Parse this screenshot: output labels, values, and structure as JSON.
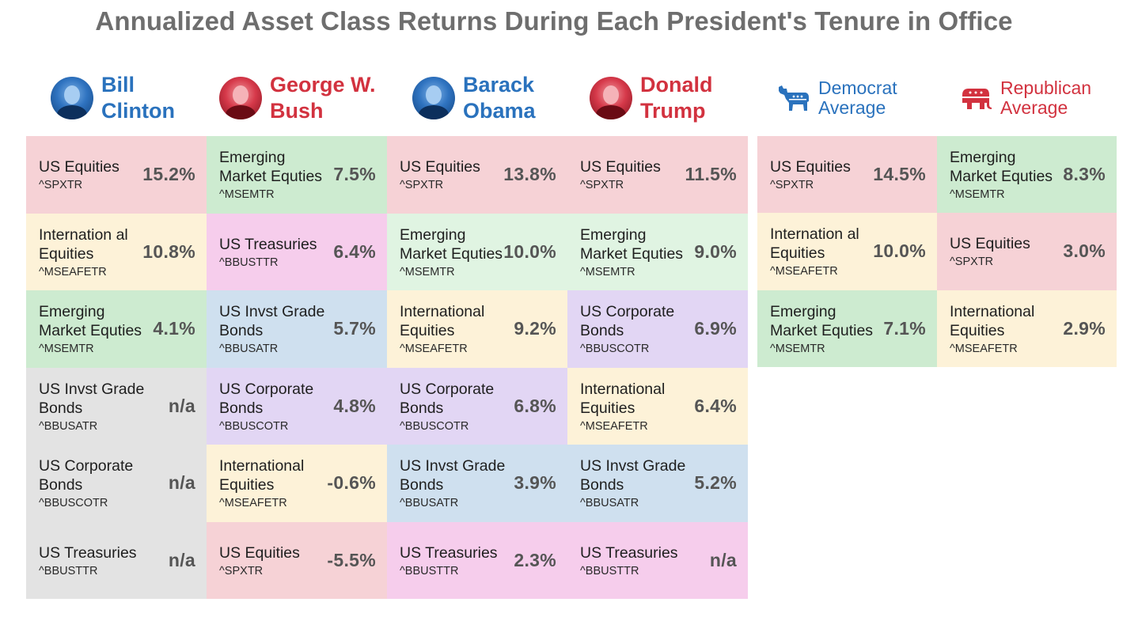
{
  "title": "Annualized Asset Class Returns During Each President's Tenure in Office",
  "colors": {
    "democrat": "#2a72bd",
    "republican": "#d2323f",
    "title": "#6e6e6e",
    "us_equities": "#f6d2d6",
    "emerging_market": "#cdebd0",
    "emerging_market_light": "#e0f4e2",
    "international": "#fdf2d8",
    "us_treasuries": "#f6cdec",
    "us_invst_grade": "#cfe0ef",
    "us_corporate": "#e2d6f4",
    "na": "#e3e3e3"
  },
  "headers": {
    "presidents": [
      {
        "first": "Bill",
        "last": "Clinton",
        "party": "dem",
        "icon": "clinton-portrait-icon"
      },
      {
        "first": "George W.",
        "last": "Bush",
        "party": "rep",
        "icon": "bush-portrait-icon"
      },
      {
        "first": "Barack",
        "last": "Obama",
        "party": "dem",
        "icon": "obama-portrait-icon"
      },
      {
        "first": "Donald",
        "last": "Trump",
        "party": "rep",
        "icon": "trump-portrait-icon"
      }
    ],
    "averages": [
      {
        "line1": "Democrat",
        "line2": "Average",
        "party": "dem",
        "icon": "donkey-icon"
      },
      {
        "line1": "Republican",
        "line2": "Average",
        "party": "rep",
        "icon": "elephant-icon"
      }
    ]
  },
  "chart_data": {
    "type": "table",
    "title": "Annualized Asset Class Returns During Each President's Tenure in Office",
    "unit": "% annualized return",
    "columns": [
      "Bill Clinton",
      "George W. Bush",
      "Barack Obama",
      "Donald Trump",
      "Democrat Average",
      "Republican Average"
    ],
    "presidents": [
      {
        "name": "Bill Clinton",
        "party": "Democrat",
        "rows": [
          {
            "asset": "US Equities",
            "ticker": "^SPXTR",
            "value": "15.2%",
            "color": "us_equities"
          },
          {
            "asset": "International Equities",
            "asset_display": "Internation al Equities",
            "ticker": "^MSEAFETR",
            "value": "10.8%",
            "color": "international"
          },
          {
            "asset": "Emerging Market Equties",
            "ticker": "^MSEMTR",
            "value": "4.1%",
            "color": "emerging_market"
          },
          {
            "asset": "US Invst Grade Bonds",
            "ticker": "^BBUSATR",
            "value": "n/a",
            "color": "na"
          },
          {
            "asset": "US Corporate Bonds",
            "ticker": "^BBUSCOTR",
            "value": "n/a",
            "color": "na"
          },
          {
            "asset": "US Treasuries",
            "ticker": "^BBUSTTR",
            "value": "n/a",
            "color": "na"
          }
        ]
      },
      {
        "name": "George W. Bush",
        "party": "Republican",
        "rows": [
          {
            "asset": "Emerging Market Equties",
            "ticker": "^MSEMTR",
            "value": "7.5%",
            "color": "emerging_market"
          },
          {
            "asset": "US Treasuries",
            "ticker": "^BBUSTTR",
            "value": "6.4%",
            "color": "us_treasuries"
          },
          {
            "asset": "US Invst Grade Bonds",
            "ticker": "^BBUSATR",
            "value": "5.7%",
            "color": "us_invst_grade"
          },
          {
            "asset": "US Corporate Bonds",
            "ticker": "^BBUSCOTR",
            "value": "4.8%",
            "color": "us_corporate"
          },
          {
            "asset": "International Equities",
            "ticker": "^MSEAFETR",
            "value": "-0.6%",
            "color": "international"
          },
          {
            "asset": "US Equities",
            "ticker": "^SPXTR",
            "value": "-5.5%",
            "color": "us_equities"
          }
        ]
      },
      {
        "name": "Barack Obama",
        "party": "Democrat",
        "rows": [
          {
            "asset": "US Equities",
            "ticker": "^SPXTR",
            "value": "13.8%",
            "color": "us_equities"
          },
          {
            "asset": "Emerging Market Equties",
            "ticker": "^MSEMTR",
            "value": "10.0%",
            "color": "emerging_market_light"
          },
          {
            "asset": "International Equities",
            "ticker": "^MSEAFETR",
            "value": "9.2%",
            "color": "international"
          },
          {
            "asset": "US Corporate Bonds",
            "ticker": "^BBUSCOTR",
            "value": "6.8%",
            "color": "us_corporate"
          },
          {
            "asset": "US Invst Grade Bonds",
            "ticker": "^BBUSATR",
            "value": "3.9%",
            "color": "us_invst_grade"
          },
          {
            "asset": "US Treasuries",
            "ticker": "^BBUSTTR",
            "value": "2.3%",
            "color": "us_treasuries"
          }
        ]
      },
      {
        "name": "Donald Trump",
        "party": "Republican",
        "rows": [
          {
            "asset": "US Equities",
            "ticker": "^SPXTR",
            "value": "11.5%",
            "color": "us_equities"
          },
          {
            "asset": "Emerging Market Equties",
            "ticker": "^MSEMTR",
            "value": "9.0%",
            "color": "emerging_market_light"
          },
          {
            "asset": "US Corporate Bonds",
            "ticker": "^BBUSCOTR",
            "value": "6.9%",
            "color": "us_corporate"
          },
          {
            "asset": "International Equities",
            "ticker": "^MSEAFETR",
            "value": "6.4%",
            "color": "international"
          },
          {
            "asset": "US Invst Grade Bonds",
            "ticker": "^BBUSATR",
            "value": "5.2%",
            "color": "us_invst_grade"
          },
          {
            "asset": "US Treasuries",
            "ticker": "^BBUSTTR",
            "value": "n/a",
            "color": "us_treasuries"
          }
        ]
      }
    ],
    "averages": [
      {
        "name": "Democrat Average",
        "rows": [
          {
            "asset": "US Equities",
            "ticker": "^SPXTR",
            "value": "14.5%",
            "color": "us_equities"
          },
          {
            "asset": "International Equities",
            "asset_display": "Internation al Equities",
            "ticker": "^MSEAFETR",
            "value": "10.0%",
            "color": "international"
          },
          {
            "asset": "Emerging Market Equties",
            "ticker": "^MSEMTR",
            "value": "7.1%",
            "color": "emerging_market"
          }
        ]
      },
      {
        "name": "Republican Average",
        "rows": [
          {
            "asset": "Emerging Market Equties",
            "ticker": "^MSEMTR",
            "value": "8.3%",
            "color": "emerging_market"
          },
          {
            "asset": "US Equities",
            "ticker": "^SPXTR",
            "value": "3.0%",
            "color": "us_equities"
          },
          {
            "asset": "International Equities",
            "ticker": "^MSEAFETR",
            "value": "2.9%",
            "color": "international"
          }
        ]
      }
    ]
  }
}
